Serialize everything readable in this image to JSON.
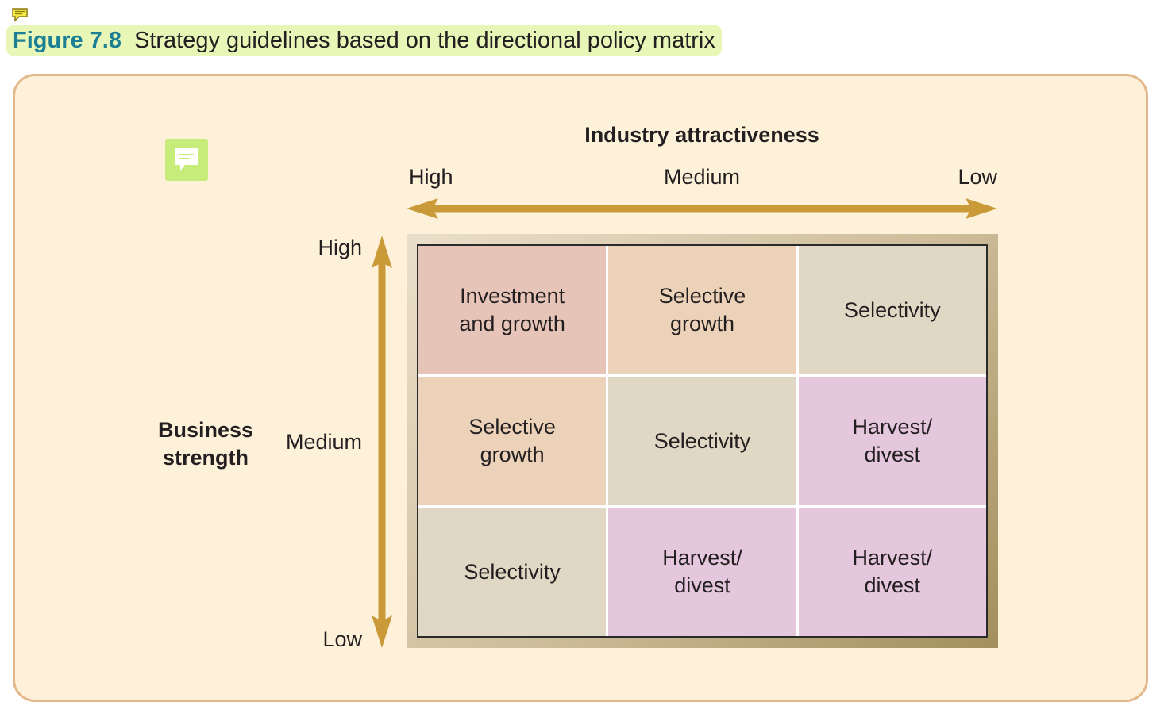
{
  "figure": {
    "number": "Figure 7.8",
    "caption": "Strategy guidelines based on the directional policy matrix"
  },
  "icons": [
    "comment-note-icon",
    "comment-note-icon"
  ],
  "colors": {
    "title_bg": "#e8f6b8",
    "figure_number": "#1d7f94",
    "panel_bg": "#fdf1da",
    "panel_border": "#e3b98c",
    "arrow": "#c99a37",
    "invest": "#e6c4b8",
    "selective_growth": "#ebd2b8",
    "selectivity": "#e0d8c4",
    "harvest": "#e4c7dc"
  },
  "x_axis": {
    "title": "Industry attractiveness",
    "high": "High",
    "medium": "Medium",
    "low": "Low"
  },
  "y_axis": {
    "title": "Business\nstrength",
    "high": "High",
    "medium": "Medium",
    "low": "Low"
  },
  "matrix": {
    "cells": [
      {
        "text": "Investment\nand growth",
        "color": "#e6c4b8"
      },
      {
        "text": "Selective\ngrowth",
        "color": "#ebd2b8"
      },
      {
        "text": "Selectivity",
        "color": "#e0d8c4"
      },
      {
        "text": "Selective\ngrowth",
        "color": "#ebd2b8"
      },
      {
        "text": "Selectivity",
        "color": "#e0d8c4"
      },
      {
        "text": "Harvest/\ndivest",
        "color": "#e4c7dc"
      },
      {
        "text": "Selectivity",
        "color": "#e0d8c4"
      },
      {
        "text": "Harvest/\ndivest",
        "color": "#e4c7dc"
      },
      {
        "text": "Harvest/\ndivest",
        "color": "#e4c7dc"
      }
    ]
  }
}
